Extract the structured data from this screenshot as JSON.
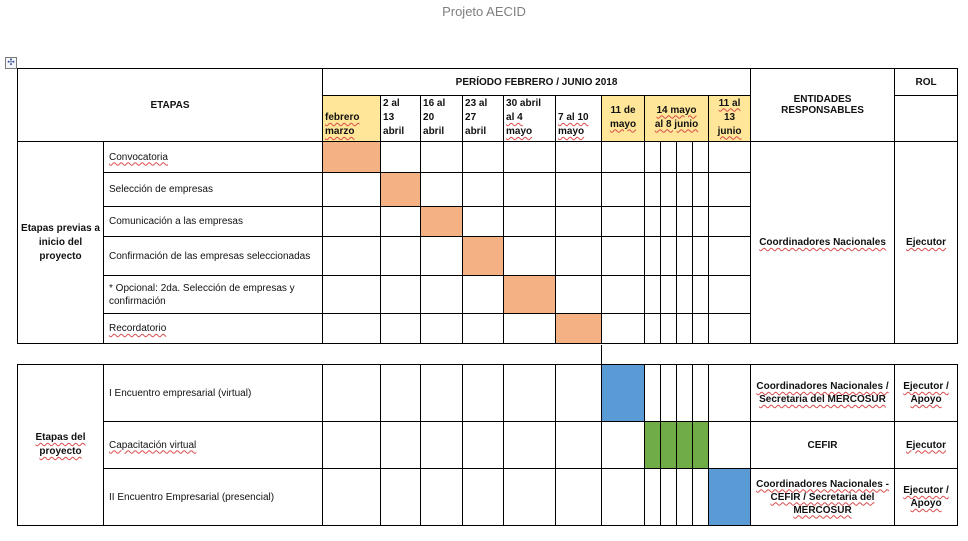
{
  "document": {
    "title": "Projeto AECID"
  },
  "header": {
    "etapas": "ETAPAS",
    "periodo": "PERÍODO FEBRERO / JUNIO 2018",
    "entidades": "ENTIDADES RESPONSABLES",
    "rol": "ROL",
    "periods": [
      [
        "febrero",
        "marzo"
      ],
      [
        "2 al",
        "13",
        "abril"
      ],
      [
        "16 al",
        "20",
        "abril"
      ],
      [
        "23 al",
        "27",
        "abril"
      ],
      [
        "30 abril",
        "al 4",
        "mayo"
      ],
      [
        "7 al 10",
        "mayo"
      ],
      [
        "11 de",
        "mayo"
      ],
      [
        "14 mayo",
        "al 8  junio"
      ],
      [
        "11 al",
        "13",
        "junio"
      ]
    ]
  },
  "section1": {
    "group_label": "Etapas previas a inicio del proyecto",
    "entity": "Coordinadores  Nacionales",
    "role": "Ejecutor",
    "rows": [
      {
        "label": "Convocatoria",
        "highlight_period": 0
      },
      {
        "label": "Selección de empresas",
        "highlight_period": 1
      },
      {
        "label": "Comunicación a las empresas",
        "highlight_period": 2
      },
      {
        "label": "Confirmación de las empresas seleccionadas",
        "highlight_period": 3
      },
      {
        "label": "* Opcional:  2da. Selección de empresas y confirmación",
        "highlight_period": 4
      },
      {
        "label": "Recordatorio",
        "highlight_period": 5
      }
    ],
    "highlight_color": "#f4b183"
  },
  "section2": {
    "group_label": "Etapas del proyecto",
    "rows": [
      {
        "label": "I Encuentro  empresarial (virtual)",
        "entity": "Coordinadores  Nacionales / Secretaria del MERCOSUR",
        "role": "Ejecutor / Apoyo",
        "highlight_period": 6,
        "highlight_color": "#5b9bd5"
      },
      {
        "label": "Capacitación virtual",
        "entity": "CEFIR",
        "role": "Ejecutor",
        "highlight_period": 7,
        "highlight_color": "#70ad47"
      },
      {
        "label": "II Encuentro  Empresarial (presencial)",
        "entity": "Coordinadores  Nacionales - CEFIR  / Secretaria del MERCOSUR",
        "role": "Ejecutor / Apoyo",
        "highlight_period": 8,
        "highlight_color": "#5b9bd5"
      }
    ]
  },
  "colors": {
    "header_highlight": "#ffe699"
  }
}
